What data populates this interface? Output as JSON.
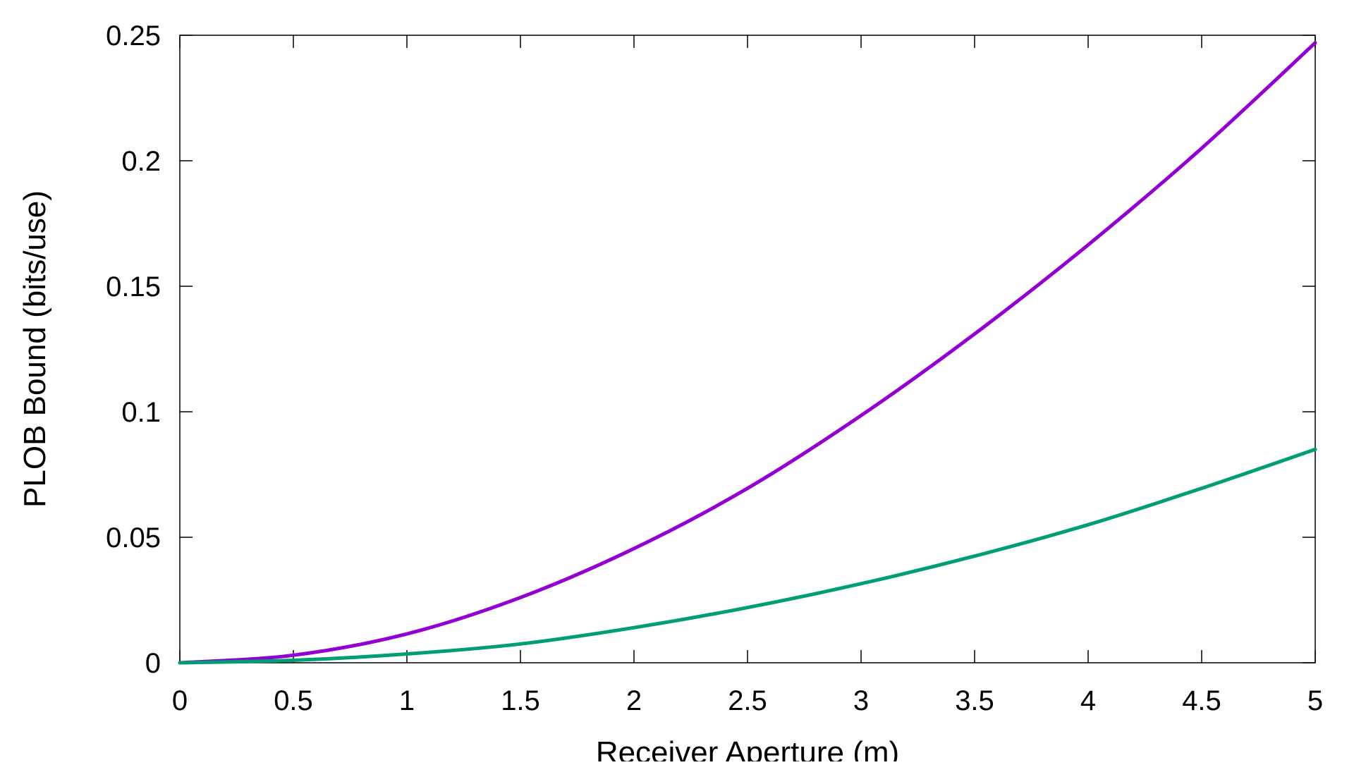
{
  "chart_data": {
    "type": "line",
    "title": "",
    "xlabel": "Receiver Aperture (m)",
    "ylabel": "PLOB Bound (bits/use)",
    "xlim": [
      0,
      5
    ],
    "ylim": [
      0,
      0.25
    ],
    "xticks": [
      0,
      0.5,
      1,
      1.5,
      2,
      2.5,
      3,
      3.5,
      4,
      4.5,
      5
    ],
    "xtick_labels": [
      "0",
      "0.5",
      "1",
      "1.5",
      "2",
      "2.5",
      "3",
      "3.5",
      "4",
      "4.5",
      "5"
    ],
    "yticks": [
      0,
      0.05,
      0.1,
      0.15,
      0.2,
      0.25
    ],
    "ytick_labels": [
      "0",
      "0.05",
      "0.1",
      "0.15",
      "0.2",
      "0.25"
    ],
    "grid": false,
    "legend": "none",
    "x": [
      0,
      0.5,
      1,
      1.5,
      2,
      2.5,
      3,
      3.5,
      4,
      4.5,
      5
    ],
    "series": [
      {
        "color": "#9400d3",
        "values": [
          0,
          0.003,
          0.0115,
          0.026,
          0.0455,
          0.0695,
          0.0985,
          0.131,
          0.1665,
          0.205,
          0.247
        ]
      },
      {
        "color": "#009e73",
        "values": [
          0,
          0.001,
          0.0035,
          0.0075,
          0.014,
          0.022,
          0.0315,
          0.0425,
          0.055,
          0.0695,
          0.085
        ]
      }
    ]
  }
}
